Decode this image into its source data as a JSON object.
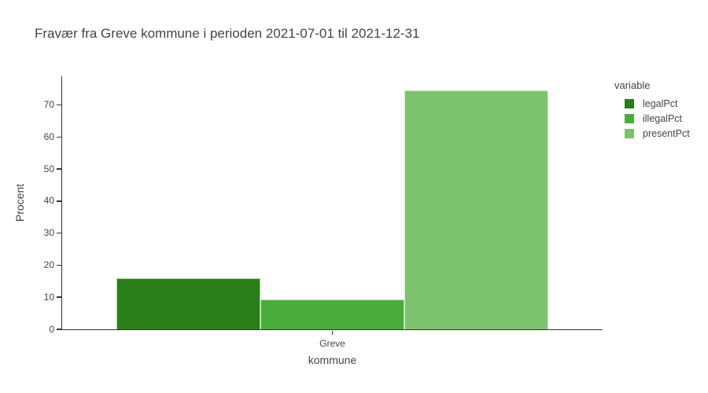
{
  "chart_data": {
    "type": "bar",
    "title": "Fravær fra Greve kommune i perioden 2021-07-01 til 2021-12-31",
    "xlabel": "kommune",
    "ylabel": "Procent",
    "categories": [
      "Greve"
    ],
    "series": [
      {
        "name": "legalPct",
        "values": [
          15.9
        ],
        "color": "#2a7e19"
      },
      {
        "name": "illegalPct",
        "values": [
          9.4
        ],
        "color": "#4bad39"
      },
      {
        "name": "presentPct",
        "values": [
          74.7
        ],
        "color": "#7bc46d"
      }
    ],
    "ylim": [
      0,
      79
    ],
    "yticks": [
      0,
      10,
      20,
      30,
      40,
      50,
      60,
      70
    ],
    "legend_title": "variable",
    "legend_position": "right",
    "grid": false,
    "background": "#ffffff",
    "axis_line_color": "#333333",
    "text_color": "#444444"
  }
}
